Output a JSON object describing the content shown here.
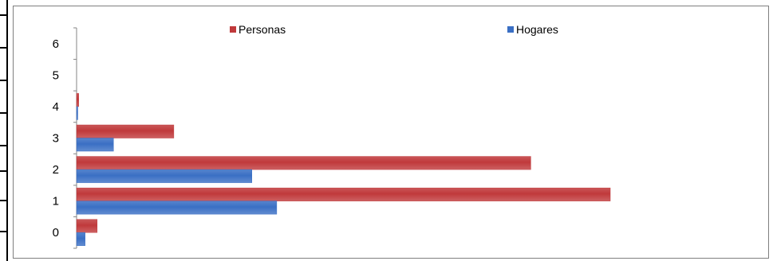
{
  "chart_data": {
    "type": "bar",
    "orientation": "horizontal",
    "categories": [
      "0",
      "1",
      "2",
      "3",
      "4",
      "5",
      "6"
    ],
    "series": [
      {
        "name": "Personas",
        "color": "#c0393b",
        "values": [
          29,
          752,
          640,
          137,
          3,
          0,
          0
        ]
      },
      {
        "name": "Hogares",
        "color": "#3a6fc4",
        "values": [
          12,
          282,
          247,
          52,
          1,
          0,
          0
        ]
      }
    ],
    "xlim": [
      0,
      870
    ],
    "legend_position": "top",
    "grid": false
  }
}
